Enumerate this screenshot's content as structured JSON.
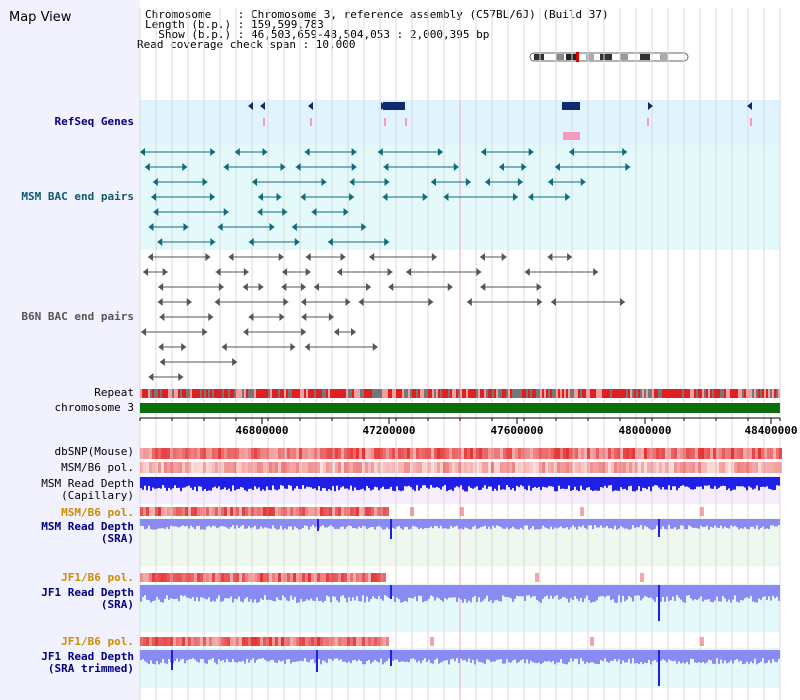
{
  "page": {
    "title": "Map View",
    "info_lines": [
      "Chromosome    : Chromosome 3, reference assembly (C57BL/6J) (Build 37)",
      "Length (b.p.) : 159,599,783",
      "  Show (b.p.) : 46,503,659-48,504,053 : 2,000,395 bp",
      "Read coverage check span : 10,000"
    ]
  },
  "tracks": {
    "refseq": "RefSeq Genes",
    "msm_bac": "MSM BAC end pairs",
    "b6n_bac": "B6N BAC end pairs",
    "repeat": "Repeat",
    "chromosome": "chromosome 3",
    "dbsnp": "dbSNP(Mouse)",
    "msm_b6_pol": "MSM/B6 pol.",
    "msm_depth_cap_1": "MSM Read Depth",
    "msm_depth_cap_2": "(Capillary)",
    "msm_b6_pol_2": "MSM/B6 pol.",
    "msm_depth_sra_1": "MSM Read Depth",
    "msm_depth_sra_2": "(SRA)",
    "jf1_b6_pol": "JF1/B6 pol.",
    "jf1_depth_sra_1": "JF1 Read Depth",
    "jf1_depth_sra_2": "(SRA)",
    "jf1_b6_pol_2": "JF1/B6 pol.",
    "jf1_depth_trim_1": "JF1 Read Depth",
    "jf1_depth_trim_2": "(SRA trimmed)"
  },
  "axis": {
    "ticks": [
      "46800000",
      "47200000",
      "47600000",
      "48000000",
      "48400000"
    ]
  },
  "colors": {
    "refseq_bg": "#dff4fe",
    "msm_bac_bg": "#e4fafa",
    "gene": "#0f2a6e",
    "msm_bac_line": "#0e6b7c",
    "b6n_bac_line": "#555555",
    "depth_blue": "#1f1fe6",
    "depth_light": "#8a8af2",
    "snp_red": "#e23b3b",
    "chromosome_green": "#0b6e0b",
    "label_navy": "#00007f",
    "label_orange": "#d08a00",
    "label_teal": "#0e5a6e"
  }
}
